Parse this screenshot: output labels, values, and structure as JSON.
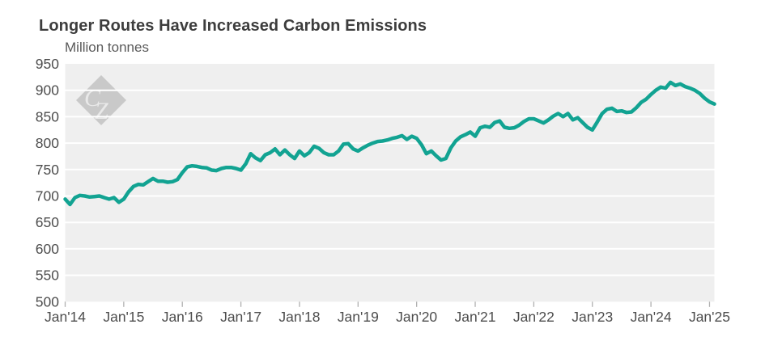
{
  "header": {
    "title": "Longer Routes Have Increased Carbon Emissions",
    "subtitle": "Million tonnes"
  },
  "watermark": {
    "text_c": "C",
    "text_z": "Z"
  },
  "colors": {
    "line": "#12a392",
    "plot_bg": "#efefef",
    "gridline": "#ffffff",
    "title_text": "#3d3d3d",
    "subtitle_text": "#595959",
    "axis_text": "#4d4d4d",
    "tick": "#b0b0b0",
    "watermark_fill": "#c9c9c9",
    "watermark_text": "#e9e9e9"
  },
  "chart_data": {
    "type": "line",
    "title": "Longer Routes Have Increased Carbon Emissions",
    "ylabel": "Million tonnes",
    "frequency": "monthly",
    "start_month": "2014-01",
    "end_month": "2025-02",
    "ylim": [
      500,
      950
    ],
    "ytick_step": 50,
    "grid": true,
    "legend_position": "none",
    "x_tick_labels": [
      "Jan'14",
      "Jan'15",
      "Jan'16",
      "Jan'17",
      "Jan'18",
      "Jan'19",
      "Jan'20",
      "Jan'21",
      "Jan'22",
      "Jan'23",
      "Jan'24",
      "Jan'25"
    ],
    "x_tick_month_indices": [
      0,
      12,
      24,
      36,
      48,
      60,
      72,
      84,
      96,
      108,
      120,
      132
    ],
    "y_tick_labels": [
      "950",
      "900",
      "850",
      "800",
      "750",
      "700",
      "650",
      "600",
      "550",
      "500"
    ],
    "values": [
      694,
      684,
      697,
      701,
      700,
      698,
      699,
      700,
      697,
      694,
      697,
      688,
      694,
      708,
      718,
      722,
      721,
      727,
      733,
      728,
      728,
      726,
      727,
      731,
      744,
      755,
      757,
      756,
      754,
      753,
      749,
      748,
      752,
      754,
      754,
      752,
      749,
      761,
      780,
      772,
      767,
      778,
      782,
      789,
      778,
      787,
      778,
      771,
      785,
      776,
      782,
      794,
      790,
      782,
      778,
      778,
      785,
      798,
      799,
      789,
      785,
      791,
      796,
      800,
      803,
      804,
      806,
      809,
      811,
      814,
      807,
      813,
      809,
      797,
      780,
      785,
      776,
      768,
      771,
      791,
      804,
      812,
      816,
      821,
      813,
      829,
      832,
      830,
      839,
      842,
      830,
      828,
      829,
      834,
      841,
      846,
      846,
      842,
      838,
      844,
      851,
      856,
      850,
      856,
      844,
      848,
      839,
      830,
      825,
      840,
      856,
      864,
      866,
      860,
      861,
      858,
      859,
      867,
      877,
      883,
      892,
      900,
      906,
      904,
      915,
      909,
      912,
      907,
      904,
      900,
      894,
      885,
      878,
      874
    ]
  }
}
